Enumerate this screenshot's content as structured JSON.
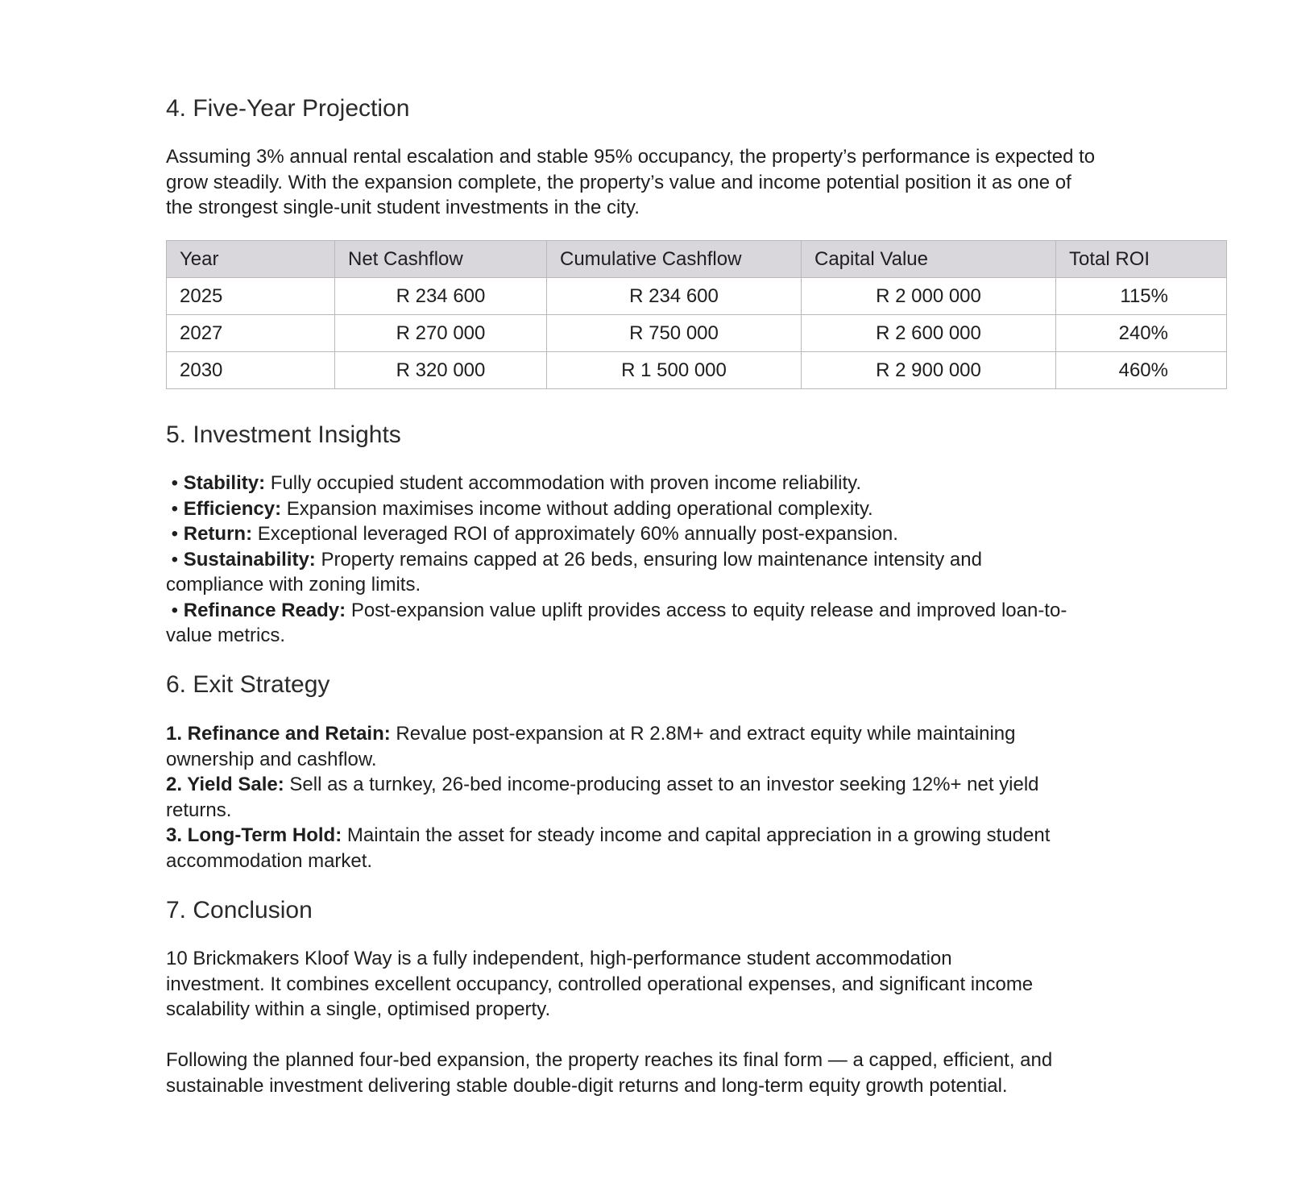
{
  "projection": {
    "heading": "4. Five-Year Projection",
    "paragraph": "Assuming 3% annual rental escalation and stable 95% occupancy, the property’s performance is expected to grow steadily. With the expansion complete, the property’s value and income potential position it as one of the strongest single-unit student investments in the city.",
    "table": {
      "headers": [
        "Year",
        "Net Cashflow",
        "Cumulative Cashflow",
        "Capital Value",
        "Total ROI"
      ],
      "rows": [
        [
          "2025",
          "R 234 600",
          "R 234 600",
          "R 2 000 000",
          "115%"
        ],
        [
          "2027",
          "R 270 000",
          "R 750 000",
          "R 2 600 000",
          "240%"
        ],
        [
          "2030",
          "R 320 000",
          "R 1 500 000",
          "R 2 900 000",
          "460%"
        ]
      ]
    }
  },
  "insights": {
    "heading": "5. Investment Insights",
    "items": [
      {
        "label": "Stability:",
        "text": " Fully occupied student accommodation with proven income reliability."
      },
      {
        "label": "Efficiency:",
        "text": " Expansion maximises income without adding operational complexity."
      },
      {
        "label": "Return:",
        "text": " Exceptional leveraged ROI of approximately 60% annually post-expansion."
      },
      {
        "label": "Sustainability:",
        "text": " Property remains capped at 26 beds, ensuring low maintenance intensity and compliance with zoning limits."
      },
      {
        "label": "Refinance Ready:",
        "text": " Post-expansion value uplift provides access to equity release and improved loan-to-value metrics."
      }
    ]
  },
  "exit": {
    "heading": "6. Exit Strategy",
    "items": [
      {
        "label": "1. Refinance and Retain:",
        "text": " Revalue post-expansion at R 2.8M+ and extract equity while maintaining ownership and cashflow."
      },
      {
        "label": "2. Yield Sale:",
        "text": " Sell as a turnkey, 26-bed income-producing asset to an investor seeking 12%+ net yield returns."
      },
      {
        "label": "3. Long-Term Hold:",
        "text": " Maintain the asset for steady income and capital appreciation in a growing student accommodation market."
      }
    ]
  },
  "conclusion": {
    "heading": "7. Conclusion",
    "paragraphs": [
      "10 Brickmakers Kloof Way is a fully independent, high-performance student accommodation investment. It combines excellent occupancy, controlled operational expenses, and significant income scalability within a single, optimised property.",
      "Following the planned four-bed expansion, the property reaches its final form — a capped, efficient, and sustainable investment delivering stable double-digit returns and long-term equity growth potential."
    ]
  }
}
